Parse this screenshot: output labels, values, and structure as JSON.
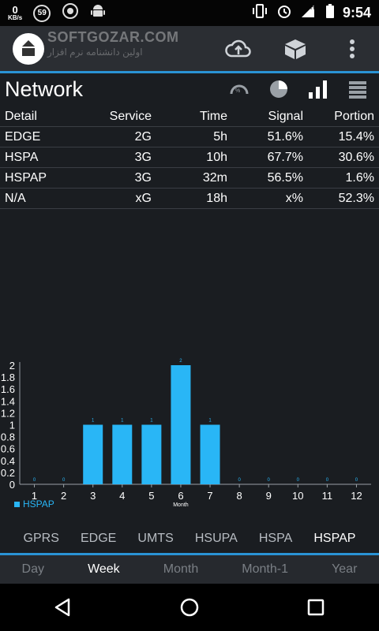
{
  "status_bar": {
    "speed_value": "0",
    "speed_unit": "KB/s",
    "badge_59": "59",
    "network_type": "H",
    "time": "9:54"
  },
  "app_bar": {
    "watermark": "SOFTGOZAR.COM",
    "watermark_sub": "اولین دانشنامه نرم افزار"
  },
  "network": {
    "title": "Network"
  },
  "table": {
    "headers": [
      "Detail",
      "Service",
      "Time",
      "Signal",
      "Portion"
    ],
    "rows": [
      [
        "EDGE",
        "2G",
        "5h",
        "51.6%",
        "15.4%"
      ],
      [
        "HSPA",
        "3G",
        "10h",
        "67.7%",
        "30.6%"
      ],
      [
        "HSPAP",
        "3G",
        "32m",
        "56.5%",
        "1.6%"
      ],
      [
        "N/A",
        "xG",
        "18h",
        "x%",
        "52.3%"
      ]
    ]
  },
  "chart_data": {
    "type": "bar",
    "categories": [
      "1",
      "2",
      "3",
      "4",
      "5",
      "6",
      "7",
      "8",
      "9",
      "10",
      "11",
      "12"
    ],
    "series": [
      {
        "name": "HSPAP",
        "values": [
          0,
          0,
          1,
          1,
          1,
          2,
          1,
          0,
          0,
          0,
          0,
          0
        ]
      }
    ],
    "data_labels": [
      "0",
      "0",
      "1",
      "1",
      "1",
      "2",
      "1",
      "0",
      "0",
      "0",
      "0",
      "0"
    ],
    "xlabel": "Month",
    "ylabel": "",
    "y_ticks": [
      "0",
      "0.2",
      "0.4",
      "0.6",
      "0.8",
      "1",
      "1.2",
      "1.4",
      "1.6",
      "1.8",
      "2"
    ],
    "ylim": [
      0,
      2
    ],
    "grid": false,
    "legend_position": "bottom-left",
    "color": "#29b6f6"
  },
  "tech_tabs": [
    "GPRS",
    "EDGE",
    "UMTS",
    "HSUPA",
    "HSPA",
    "HSPAP"
  ],
  "tech_active": "HSPAP",
  "period_tabs": [
    "Day",
    "Week",
    "Month",
    "Month-1",
    "Year"
  ],
  "period_active": "Week",
  "icons": {
    "status_left": [
      "speed-meter",
      "badge-59",
      "settings-icon",
      "android-icon"
    ],
    "status_right": [
      "vibrate-icon",
      "alarm-icon",
      "signal-icon",
      "battery-icon"
    ],
    "app_bar": [
      "app-logo-icon",
      "cloud-upload-icon",
      "box-icon",
      "more-vert-icon"
    ],
    "network_header": [
      "gauge-icon",
      "pie-chart-icon",
      "bar-chart-icon",
      "list-icon"
    ],
    "nav": [
      "back-icon",
      "home-icon",
      "recents-icon"
    ]
  },
  "colors": {
    "accent": "#2a93d5",
    "bar": "#29b6f6",
    "background": "#1a1d21"
  }
}
